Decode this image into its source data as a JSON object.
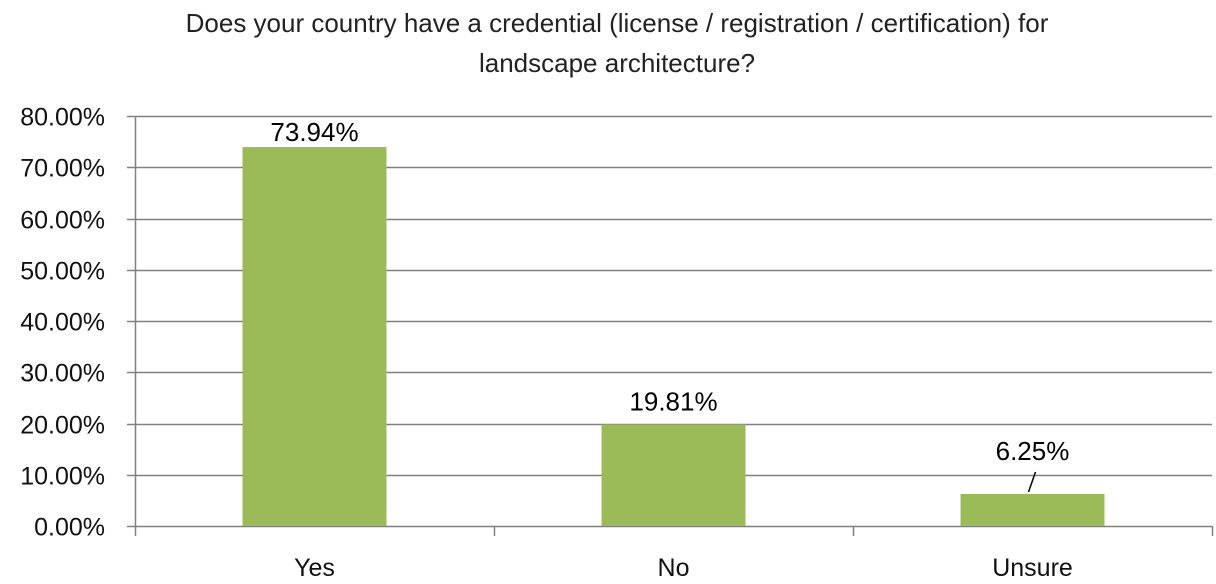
{
  "chart_data": {
    "type": "bar",
    "title": "Does your country have a credential (license / registration / certification) for landscape architecture?",
    "title_lines": [
      "Does your country have a credential (license / registration / certification) for",
      "landscape architecture?"
    ],
    "categories": [
      "Yes",
      "No",
      "Unsure"
    ],
    "values": [
      73.94,
      19.81,
      6.25
    ],
    "data_labels": [
      "73.94%",
      "19.81%",
      "6.25%"
    ],
    "ylim": [
      0,
      80
    ],
    "yticks": [
      0,
      10,
      20,
      30,
      40,
      50,
      60,
      70,
      80
    ],
    "ytick_labels": [
      "0.00%",
      "10.00%",
      "20.00%",
      "30.00%",
      "40.00%",
      "50.00%",
      "60.00%",
      "70.00%",
      "80.00%"
    ],
    "xlabel": "",
    "ylabel": "",
    "grid": true,
    "legend": "none",
    "bar_color": "#9bbb59",
    "grid_color": "#808080"
  }
}
